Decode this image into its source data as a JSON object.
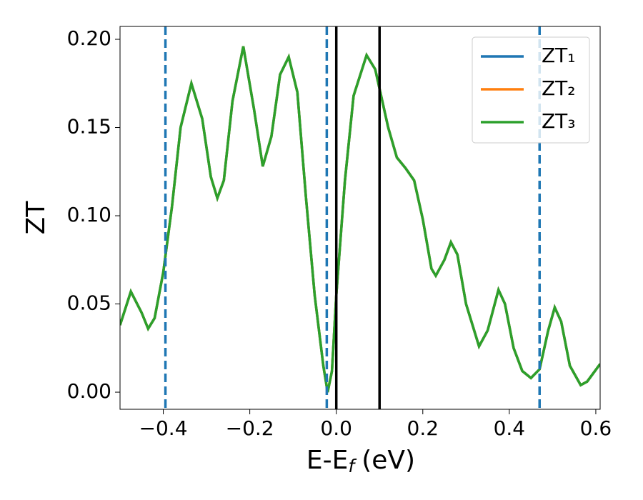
{
  "chart_data": {
    "type": "line",
    "xlabel": [
      "E-E",
      "f",
      "(eV)"
    ],
    "ylabel": "ZT",
    "x": [
      -0.5,
      -0.475,
      -0.45,
      -0.435,
      -0.42,
      -0.4,
      -0.38,
      -0.36,
      -0.335,
      -0.31,
      -0.29,
      -0.275,
      -0.26,
      -0.24,
      -0.215,
      -0.19,
      -0.17,
      -0.15,
      -0.13,
      -0.11,
      -0.09,
      -0.07,
      -0.05,
      -0.03,
      -0.02,
      -0.01,
      0.0,
      0.02,
      0.04,
      0.07,
      0.09,
      0.1,
      0.12,
      0.14,
      0.16,
      0.18,
      0.2,
      0.22,
      0.23,
      0.25,
      0.265,
      0.28,
      0.3,
      0.33,
      0.35,
      0.375,
      0.39,
      0.41,
      0.43,
      0.45,
      0.47,
      0.49,
      0.505,
      0.52,
      0.54,
      0.565,
      0.58,
      0.61
    ],
    "series": [
      {
        "name": "ZT₁",
        "color": "#1f77b4",
        "values": [
          0.038,
          0.057,
          0.045,
          0.036,
          0.042,
          0.068,
          0.105,
          0.15,
          0.175,
          0.155,
          0.122,
          0.11,
          0.12,
          0.165,
          0.196,
          0.16,
          0.128,
          0.145,
          0.18,
          0.19,
          0.17,
          0.11,
          0.055,
          0.015,
          0.0,
          0.012,
          0.055,
          0.12,
          0.168,
          0.191,
          0.183,
          0.172,
          0.15,
          0.133,
          0.127,
          0.12,
          0.098,
          0.07,
          0.066,
          0.075,
          0.085,
          0.078,
          0.05,
          0.026,
          0.035,
          0.058,
          0.05,
          0.025,
          0.012,
          0.008,
          0.013,
          0.035,
          0.048,
          0.04,
          0.015,
          0.004,
          0.006,
          0.016
        ]
      },
      {
        "name": "ZT₂",
        "color": "#ff7f0e",
        "values": [
          0.038,
          0.057,
          0.045,
          0.036,
          0.042,
          0.068,
          0.105,
          0.15,
          0.175,
          0.155,
          0.122,
          0.11,
          0.12,
          0.165,
          0.196,
          0.16,
          0.128,
          0.145,
          0.18,
          0.19,
          0.17,
          0.11,
          0.055,
          0.015,
          0.0,
          0.012,
          0.055,
          0.12,
          0.168,
          0.191,
          0.183,
          0.172,
          0.15,
          0.133,
          0.127,
          0.12,
          0.098,
          0.07,
          0.066,
          0.075,
          0.085,
          0.078,
          0.05,
          0.026,
          0.035,
          0.058,
          0.05,
          0.025,
          0.012,
          0.008,
          0.013,
          0.035,
          0.048,
          0.04,
          0.015,
          0.004,
          0.006,
          0.016
        ]
      },
      {
        "name": "ZT₃",
        "color": "#2ca02c",
        "values": [
          0.038,
          0.057,
          0.045,
          0.036,
          0.042,
          0.068,
          0.105,
          0.15,
          0.175,
          0.155,
          0.122,
          0.11,
          0.12,
          0.165,
          0.196,
          0.16,
          0.128,
          0.145,
          0.18,
          0.19,
          0.17,
          0.11,
          0.055,
          0.015,
          0.0,
          0.012,
          0.055,
          0.12,
          0.168,
          0.191,
          0.183,
          0.172,
          0.15,
          0.133,
          0.127,
          0.12,
          0.098,
          0.07,
          0.066,
          0.075,
          0.085,
          0.078,
          0.05,
          0.026,
          0.035,
          0.058,
          0.05,
          0.025,
          0.012,
          0.008,
          0.013,
          0.035,
          0.048,
          0.04,
          0.015,
          0.004,
          0.006,
          0.016
        ]
      }
    ],
    "vlines": [
      {
        "x": -0.395,
        "color": "#1f77b4",
        "dashed": true
      },
      {
        "x": -0.022,
        "color": "#1f77b4",
        "dashed": true
      },
      {
        "x": 0.0,
        "color": "#000000",
        "dashed": false
      },
      {
        "x": 0.1,
        "color": "#000000",
        "dashed": false
      },
      {
        "x": 0.47,
        "color": "#1f77b4",
        "dashed": true
      }
    ],
    "xlim": [
      -0.5,
      0.61
    ],
    "ylim": [
      -0.0097,
      0.2073
    ],
    "xticks": [
      {
        "value": -0.4,
        "label": "−0.4"
      },
      {
        "value": -0.2,
        "label": "−0.2"
      },
      {
        "value": 0.0,
        "label": "0.0"
      },
      0.2,
      0.4,
      0.6
    ],
    "yticks": [
      {
        "value": 0.0,
        "label": "0.00"
      },
      {
        "value": 0.05,
        "label": "0.05"
      },
      {
        "value": 0.1,
        "label": "0.10"
      },
      {
        "value": 0.15,
        "label": "0.15"
      },
      {
        "value": 0.2,
        "label": "0.20"
      }
    ],
    "grid": false,
    "legend": "upper right"
  }
}
